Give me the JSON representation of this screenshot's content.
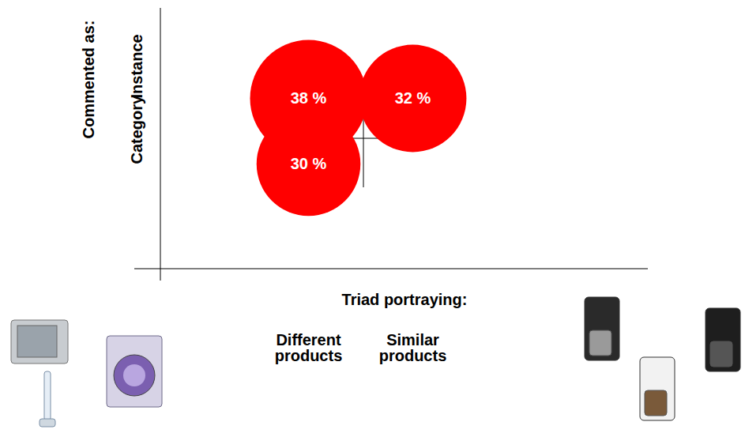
{
  "chart_data": {
    "type": "bubble",
    "x_label": "Triad portraying:",
    "y_label": "Commented as:",
    "x_categories": [
      "Different products",
      "Similar products"
    ],
    "y_categories": [
      "Category",
      "Instance"
    ],
    "x": [
      "Different products",
      "Similar products",
      "Different products"
    ],
    "y": [
      "Instance",
      "Instance",
      "Category"
    ],
    "values": [
      38,
      32,
      30
    ],
    "value_labels": [
      "38 %",
      "32 %",
      "30 %"
    ],
    "color": "#ff0000",
    "data_labels": true
  }
}
